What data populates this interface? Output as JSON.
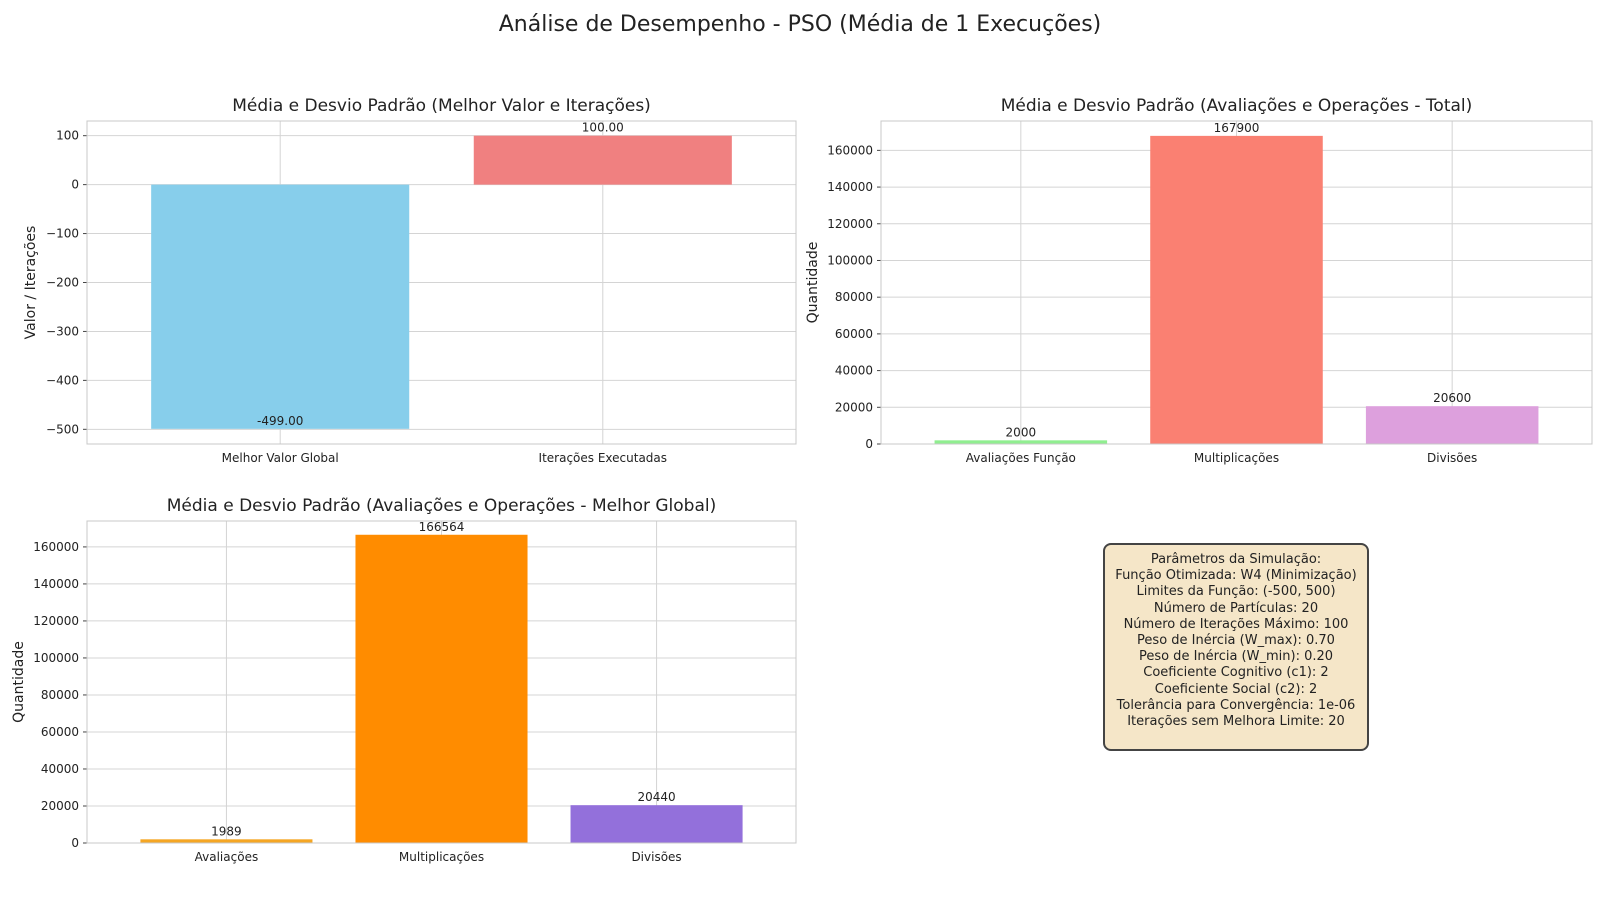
{
  "suptitle": "Análise de Desempenho - PSO (Média de 1 Execuções)",
  "chart_data": [
    {
      "type": "bar",
      "title": "Média e Desvio Padrão (Melhor Valor e Iterações)",
      "xlabel": "",
      "ylabel": "Valor / Iterações",
      "categories": [
        "Melhor Valor Global",
        "Iterações Executadas"
      ],
      "values": [
        -499.0,
        100.0
      ],
      "data_labels": [
        "-499.00",
        "100.00"
      ],
      "colors": [
        "#87ceeb",
        "#f08080"
      ],
      "ylim": [
        -530,
        130
      ],
      "yticks": [
        -500,
        -400,
        -300,
        -200,
        -100,
        0,
        100
      ],
      "ytick_labels": [
        "−500",
        "−400",
        "−300",
        "−200",
        "−100",
        "0",
        "100"
      ],
      "grid": true
    },
    {
      "type": "bar",
      "title": "Média e Desvio Padrão (Avaliações e Operações - Total)",
      "xlabel": "",
      "ylabel": "Quantidade",
      "categories": [
        "Avaliações Função",
        "Multiplicações",
        "Divisões"
      ],
      "values": [
        2000,
        167900,
        20600
      ],
      "data_labels": [
        "2000",
        "167900",
        "20600"
      ],
      "colors": [
        "#90ee90",
        "#fa8072",
        "#dda0dd"
      ],
      "ylim": [
        0,
        176000
      ],
      "yticks": [
        0,
        20000,
        40000,
        60000,
        80000,
        100000,
        120000,
        140000,
        160000
      ],
      "ytick_labels": [
        "0",
        "20000",
        "40000",
        "60000",
        "80000",
        "100000",
        "120000",
        "140000",
        "160000"
      ],
      "grid": true
    },
    {
      "type": "bar",
      "title": "Média e Desvio Padrão (Avaliações e Operações - Melhor Global)",
      "xlabel": "",
      "ylabel": "Quantidade",
      "categories": [
        "Avaliações",
        "Multiplicações",
        "Divisões"
      ],
      "values": [
        1989,
        166564,
        20440
      ],
      "data_labels": [
        "1989",
        "166564",
        "20440"
      ],
      "colors": [
        "#f5a623",
        "#ff8c00",
        "#9370db"
      ],
      "ylim": [
        0,
        174000
      ],
      "yticks": [
        0,
        20000,
        40000,
        60000,
        80000,
        100000,
        120000,
        140000,
        160000
      ],
      "ytick_labels": [
        "0",
        "20000",
        "40000",
        "60000",
        "80000",
        "100000",
        "120000",
        "140000",
        "160000"
      ],
      "grid": true
    }
  ],
  "params": {
    "lines": [
      "Parâmetros da Simulação:",
      "Função Otimizada: W4 (Minimização)",
      "Limites da Função: (-500, 500)",
      "Número de Partículas: 20",
      "Número de Iterações Máximo: 100",
      "Peso de Inércia (W_max): 0.70",
      "Peso de Inércia (W_min): 0.20",
      "Coeficiente Cognitivo (c1): 2",
      "Coeficiente Social (c2): 2",
      "Tolerância para Convergência: 1e-06",
      "Iterações sem Melhora Limite: 20"
    ]
  }
}
